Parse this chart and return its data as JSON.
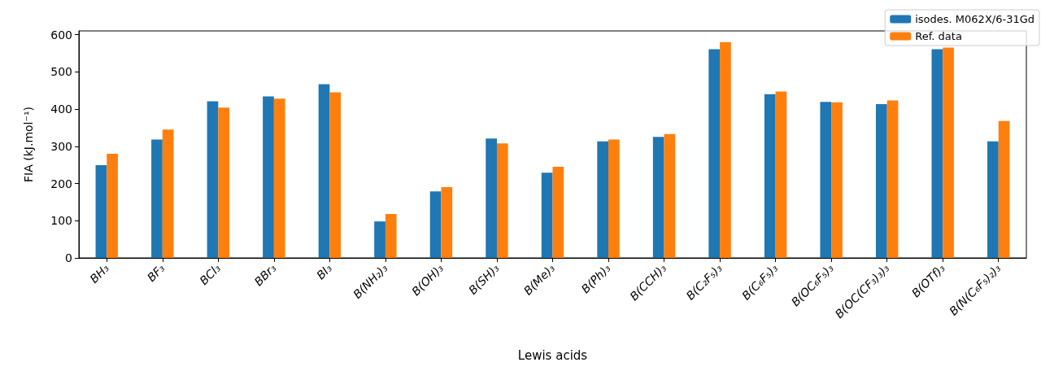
{
  "chart_data": {
    "type": "bar",
    "xlabel": "Lewis acids",
    "ylabel": "FIA (kJ.mol⁻¹)",
    "categories": [
      "BH₃",
      "BF₃",
      "BCl₃",
      "BBr₃",
      "BI₃",
      "B(NH₂)₃",
      "B(OH)₃",
      "B(SH)₃",
      "B(Me)₃",
      "B(Ph)₃",
      "B(CCH)₃",
      "B(C₂F₅)₃",
      "B(C₆F₅)₃",
      "B(OC₆F₅)₃",
      "B(OC(CF₃)₃)₃",
      "B(OTf)₃",
      "B(N(C₆F₅)₂)₃"
    ],
    "series": [
      {
        "name": "isodes. M062X/6-31Gd",
        "color": "#1f77b4",
        "values": [
          249,
          318,
          421,
          434,
          467,
          98,
          179,
          321,
          229,
          313,
          325,
          561,
          440,
          419,
          413,
          561,
          313
        ]
      },
      {
        "name": "Ref. data",
        "color": "#ff7f0e",
        "values": [
          280,
          345,
          404,
          428,
          445,
          118,
          190,
          308,
          245,
          318,
          333,
          580,
          447,
          418,
          423,
          565,
          368
        ]
      }
    ],
    "ylim": [
      0,
      610
    ],
    "yticks": [
      0,
      100,
      200,
      300,
      400,
      500,
      600
    ],
    "grid": false,
    "legend": "top right"
  }
}
